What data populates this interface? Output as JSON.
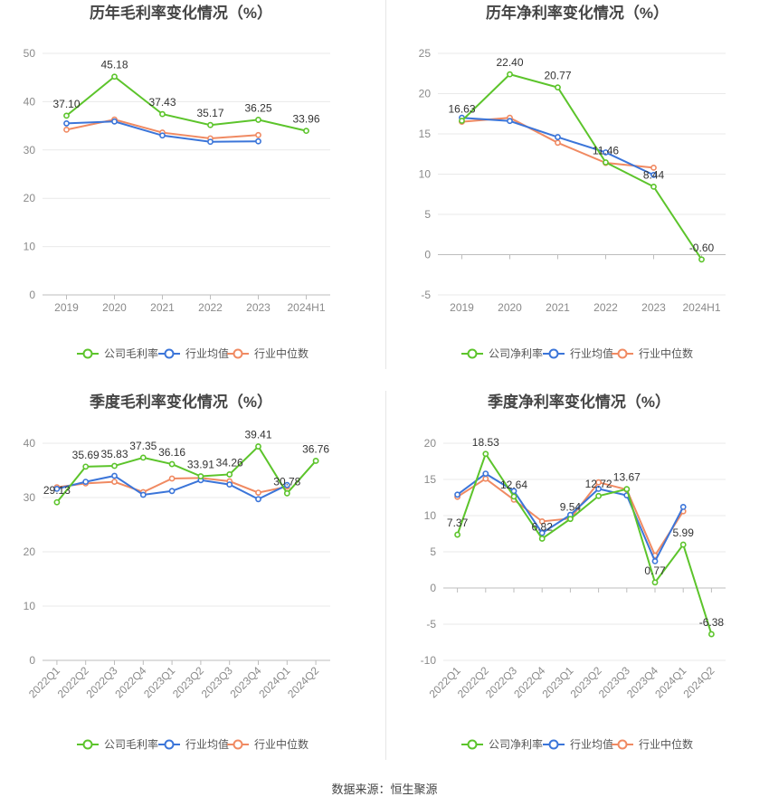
{
  "colors": {
    "company": "#5cc42b",
    "industry_avg": "#3b75d9",
    "industry_median": "#f08a62",
    "grid": "#e9e9e9",
    "axis_text": "#8a8a8a",
    "title": "#444444",
    "label": "#333333"
  },
  "source_text": "数据来源：恒生聚源",
  "chart_data": [
    {
      "id": "annual-gross-margin",
      "type": "line",
      "title": "历年毛利率变化情况（%）",
      "categories": [
        "2019",
        "2020",
        "2021",
        "2022",
        "2023",
        "2024H1"
      ],
      "ylim": [
        0,
        50
      ],
      "yticks": [
        0,
        10,
        20,
        30,
        40,
        50
      ],
      "grid": true,
      "legend_position": "bottom-center",
      "rotate_x_labels": false,
      "series": [
        {
          "name": "公司毛利率",
          "role": "company",
          "values": [
            37.1,
            45.18,
            37.43,
            35.17,
            36.25,
            33.96
          ],
          "labels": [
            "37.10",
            "45.18",
            "37.43",
            "35.17",
            "36.25",
            "33.96"
          ]
        },
        {
          "name": "行业均值",
          "role": "industry_avg",
          "values": [
            35.5,
            35.9,
            33.0,
            31.7,
            31.8,
            null
          ]
        },
        {
          "name": "行业中位数",
          "role": "industry_median",
          "values": [
            34.2,
            36.3,
            33.6,
            32.4,
            33.1,
            null
          ]
        }
      ]
    },
    {
      "id": "annual-net-margin",
      "type": "line",
      "title": "历年净利率变化情况（%）",
      "categories": [
        "2019",
        "2020",
        "2021",
        "2022",
        "2023",
        "2024H1"
      ],
      "ylim": [
        -5,
        25
      ],
      "yticks": [
        -5,
        0,
        5,
        10,
        15,
        20,
        25
      ],
      "grid": true,
      "legend_position": "bottom-center",
      "rotate_x_labels": false,
      "series": [
        {
          "name": "公司净利率",
          "role": "company",
          "values": [
            16.63,
            22.4,
            20.77,
            11.46,
            8.44,
            -0.6
          ],
          "labels": [
            "16.63",
            "22.40",
            "20.77",
            "11.46",
            "8.44",
            "-0.60"
          ]
        },
        {
          "name": "行业均值",
          "role": "industry_avg",
          "values": [
            17.0,
            16.6,
            14.6,
            12.7,
            9.9,
            null
          ]
        },
        {
          "name": "行业中位数",
          "role": "industry_median",
          "values": [
            16.5,
            17.0,
            13.9,
            11.4,
            10.8,
            null
          ]
        }
      ]
    },
    {
      "id": "quarterly-gross-margin",
      "type": "line",
      "title": "季度毛利率变化情况（%）",
      "categories": [
        "2022Q1",
        "2022Q2",
        "2022Q3",
        "2022Q4",
        "2023Q1",
        "2023Q2",
        "2023Q3",
        "2023Q4",
        "2024Q1",
        "2024Q2"
      ],
      "ylim": [
        0,
        40
      ],
      "yticks": [
        0,
        10,
        20,
        30,
        40
      ],
      "grid": true,
      "legend_position": "bottom-center",
      "rotate_x_labels": true,
      "series": [
        {
          "name": "公司毛利率",
          "role": "company",
          "values": [
            29.13,
            35.69,
            35.83,
            37.35,
            36.16,
            33.91,
            34.26,
            39.41,
            30.78,
            36.76
          ],
          "labels": [
            "29.13",
            "35.69",
            "35.83",
            "37.35",
            "36.16",
            "33.91",
            "34.26",
            "39.41",
            "30.78",
            "36.76"
          ]
        },
        {
          "name": "行业均值",
          "role": "industry_avg",
          "values": [
            31.6,
            32.9,
            34.0,
            30.5,
            31.2,
            33.2,
            32.4,
            29.7,
            32.3,
            null
          ]
        },
        {
          "name": "行业中位数",
          "role": "industry_median",
          "values": [
            31.9,
            32.6,
            32.9,
            31.0,
            33.5,
            33.6,
            33.0,
            30.9,
            32.0,
            null
          ]
        }
      ]
    },
    {
      "id": "quarterly-net-margin",
      "type": "line",
      "title": "季度净利率变化情况（%）",
      "categories": [
        "2022Q1",
        "2022Q2",
        "2022Q3",
        "2022Q4",
        "2023Q1",
        "2023Q2",
        "2023Q3",
        "2023Q4",
        "2024Q1",
        "2024Q2"
      ],
      "ylim": [
        -10,
        20
      ],
      "yticks": [
        -10,
        -5,
        0,
        5,
        10,
        15,
        20
      ],
      "grid": true,
      "legend_position": "bottom-center",
      "rotate_x_labels": true,
      "series": [
        {
          "name": "公司净利率",
          "role": "company",
          "values": [
            7.37,
            18.53,
            12.64,
            6.82,
            9.54,
            12.72,
            13.67,
            0.77,
            5.99,
            -6.38
          ],
          "labels": [
            "7.37",
            "18.53",
            "12.64",
            "6.82",
            "9.54",
            "12.72",
            "13.67",
            "0.77",
            "5.99",
            "-6.38"
          ]
        },
        {
          "name": "行业均值",
          "role": "industry_avg",
          "values": [
            12.9,
            15.8,
            13.4,
            7.6,
            10.1,
            13.7,
            12.8,
            3.7,
            11.2,
            null
          ]
        },
        {
          "name": "行业中位数",
          "role": "industry_median",
          "values": [
            12.6,
            15.1,
            12.2,
            9.2,
            9.6,
            14.6,
            13.6,
            4.5,
            10.6,
            null
          ]
        }
      ]
    }
  ]
}
